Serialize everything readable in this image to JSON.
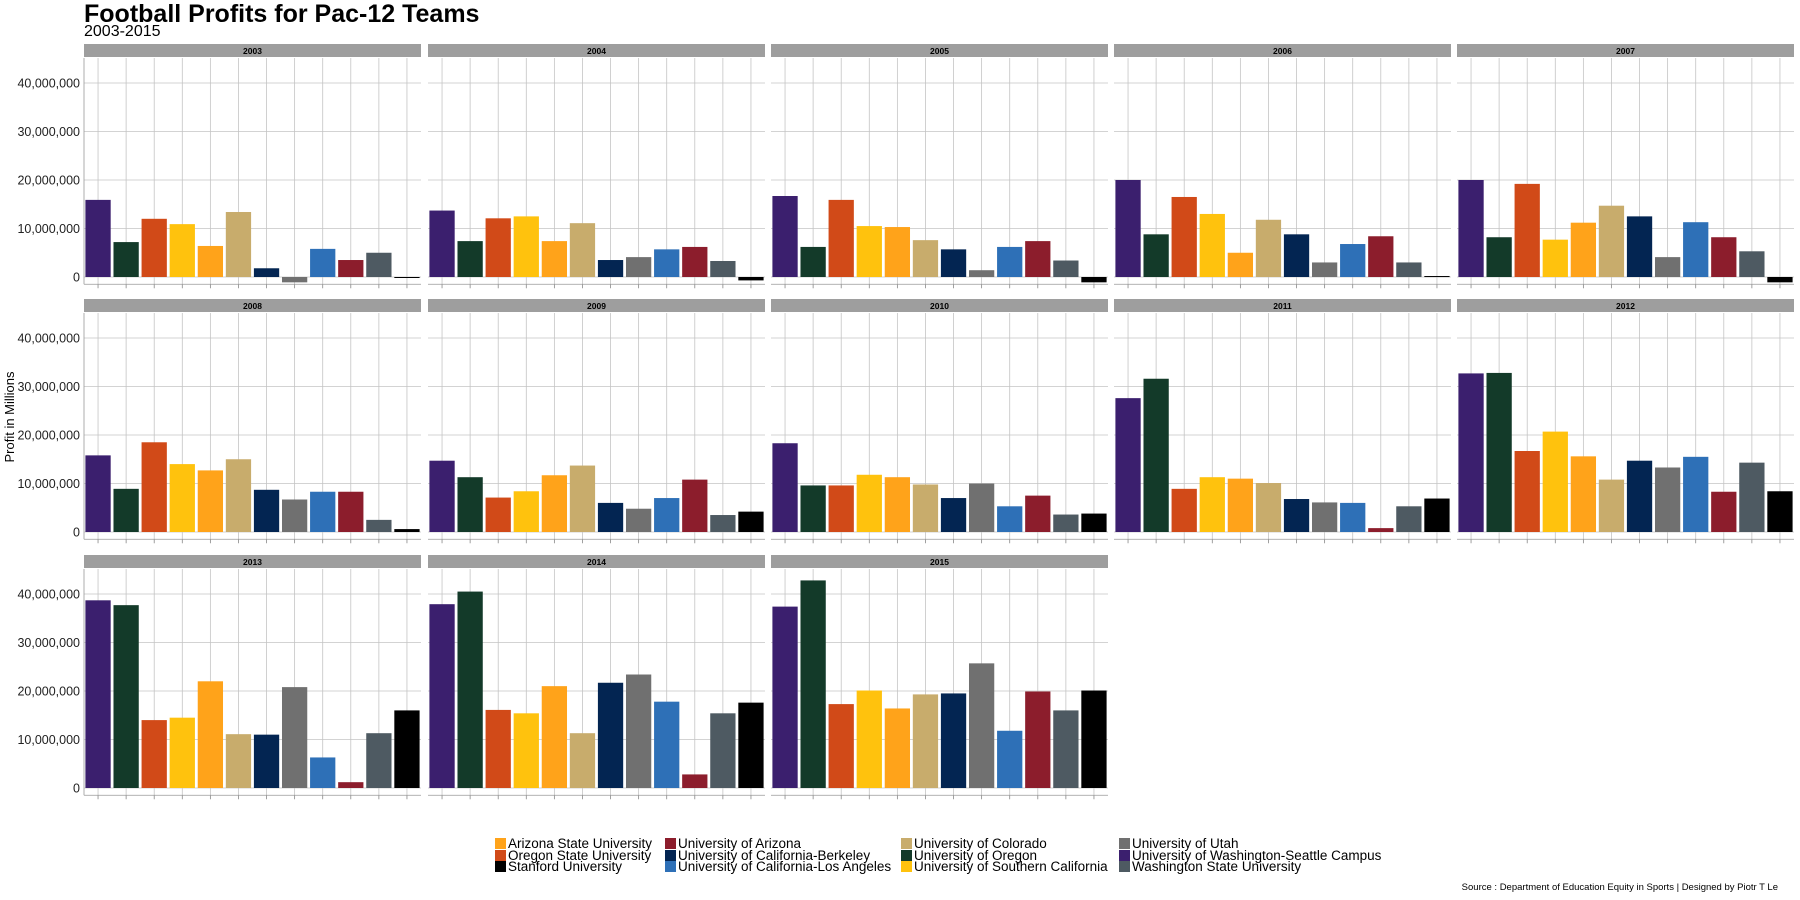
{
  "title": "Football Profits for Pac-12 Teams",
  "subtitle": "2003-2015",
  "caption": "Source : Department of Education Equity in Sports | Designed by Piotr T Le",
  "chart_data": {
    "type": "bar",
    "facet": "year",
    "ylabel": "Profit in Millions",
    "xlabel": "",
    "ylim": [
      -1500000,
      45000000
    ],
    "yticks": [
      0,
      10000000,
      20000000,
      30000000,
      40000000
    ],
    "ytick_labels": [
      "0",
      "10,000,000",
      "20,000,000",
      "30,000,000",
      "40,000,000"
    ],
    "grid": true,
    "legend_position": "bottom",
    "team_order": [
      "University of Washington-Seattle Campus",
      "University of Oregon",
      "Oregon State University",
      "University of Southern California",
      "Arizona State University",
      "University of Colorado",
      "University of California-Berkeley",
      "University of Utah",
      "University of California-Los Angeles",
      "University of Arizona",
      "Washington State University",
      "Stanford University"
    ],
    "colors": {
      "Arizona State University": "#FFA31A",
      "University of Arizona": "#8C1D2C",
      "University of Colorado": "#C8AC6C",
      "University of Utah": "#707070",
      "Oregon State University": "#D14A18",
      "University of California-Berkeley": "#032552",
      "University of Oregon": "#133A29",
      "University of Washington-Seattle Campus": "#3B1F6E",
      "Stanford University": "#000000",
      "University of California-Los Angeles": "#2E70B7",
      "University of Southern California": "#FFC20D",
      "Washington State University": "#4E5A62"
    },
    "legend": [
      "Arizona State University",
      "University of Arizona",
      "University of Colorado",
      "University of Utah",
      "Oregon State University",
      "University of California-Berkeley",
      "University of Oregon",
      "University of Washington-Seattle Campus",
      "Stanford University",
      "University of California-Los Angeles",
      "University of Southern California",
      "Washington State University"
    ],
    "panels": [
      {
        "year": "2003",
        "values": [
          15900000,
          7200000,
          12000000,
          10900000,
          6400000,
          13400000,
          1800000,
          -1100000,
          5800000,
          3500000,
          5000000,
          -200000
        ]
      },
      {
        "year": "2004",
        "values": [
          13700000,
          7400000,
          12100000,
          12500000,
          7400000,
          11100000,
          3500000,
          4100000,
          5700000,
          6200000,
          3300000,
          -700000
        ]
      },
      {
        "year": "2005",
        "values": [
          16700000,
          6200000,
          15900000,
          10500000,
          10300000,
          7600000,
          5700000,
          1400000,
          6200000,
          7400000,
          3400000,
          -1100000
        ]
      },
      {
        "year": "2006",
        "values": [
          20000000,
          8800000,
          16500000,
          13000000,
          5000000,
          11800000,
          8800000,
          3000000,
          6800000,
          8400000,
          3000000,
          200000
        ]
      },
      {
        "year": "2007",
        "values": [
          20000000,
          8200000,
          19200000,
          7700000,
          11200000,
          14700000,
          12500000,
          4100000,
          11300000,
          8200000,
          5300000,
          -1100000
        ]
      },
      {
        "year": "2008",
        "values": [
          15800000,
          8900000,
          18500000,
          14000000,
          12700000,
          15000000,
          8700000,
          6700000,
          8300000,
          8300000,
          2500000,
          600000
        ]
      },
      {
        "year": "2009",
        "values": [
          14700000,
          11300000,
          7100000,
          8400000,
          11700000,
          13700000,
          6000000,
          4800000,
          7000000,
          10800000,
          3500000,
          4200000
        ]
      },
      {
        "year": "2010",
        "values": [
          18300000,
          9600000,
          9600000,
          11800000,
          11300000,
          9800000,
          7000000,
          10000000,
          5300000,
          7500000,
          3600000,
          3800000
        ]
      },
      {
        "year": "2011",
        "values": [
          27600000,
          31600000,
          8900000,
          11300000,
          11000000,
          10100000,
          6800000,
          6100000,
          6000000,
          800000,
          5300000,
          6900000
        ]
      },
      {
        "year": "2012",
        "values": [
          32700000,
          32800000,
          16700000,
          20700000,
          15600000,
          10800000,
          14700000,
          13300000,
          15500000,
          8300000,
          14300000,
          8400000
        ]
      },
      {
        "year": "2013",
        "values": [
          38700000,
          37700000,
          14000000,
          14500000,
          22000000,
          11100000,
          11000000,
          20800000,
          6300000,
          1200000,
          11300000,
          16000000
        ]
      },
      {
        "year": "2014",
        "values": [
          37900000,
          40500000,
          16100000,
          15400000,
          21000000,
          11300000,
          21700000,
          23400000,
          17800000,
          2800000,
          15400000,
          17600000
        ]
      },
      {
        "year": "2015",
        "values": [
          37400000,
          42800000,
          17300000,
          20100000,
          16400000,
          19300000,
          19500000,
          25700000,
          11800000,
          19900000,
          16000000,
          20100000
        ]
      }
    ]
  }
}
